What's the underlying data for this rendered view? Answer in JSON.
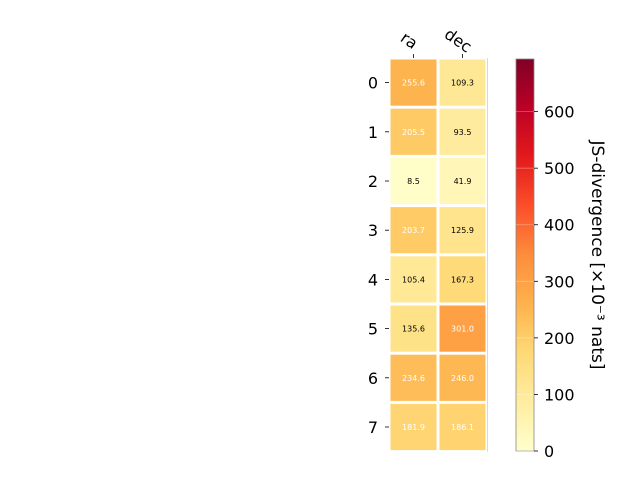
{
  "chart_data": {
    "type": "heatmap",
    "columns": [
      "ra",
      "dec"
    ],
    "rows": [
      "0",
      "1",
      "2",
      "3",
      "4",
      "5",
      "6",
      "7"
    ],
    "values": [
      [
        255.6,
        109.3
      ],
      [
        205.5,
        93.5
      ],
      [
        8.5,
        41.9
      ],
      [
        203.7,
        125.9
      ],
      [
        105.4,
        167.3
      ],
      [
        135.6,
        301.0
      ],
      [
        234.6,
        246.0
      ],
      [
        181.9,
        186.1
      ]
    ],
    "value_labels": [
      [
        "255.6",
        "109.3"
      ],
      [
        "205.5",
        "93.5"
      ],
      [
        "8.5",
        "41.9"
      ],
      [
        "203.7",
        "125.9"
      ],
      [
        "105.4",
        "167.3"
      ],
      [
        "135.6",
        "301.0"
      ],
      [
        "234.6",
        "246.0"
      ],
      [
        "181.9",
        "186.1"
      ]
    ],
    "colorbar": {
      "label": "JS-divergence [×10⁻³ nats]",
      "range": [
        0,
        693
      ],
      "ticks": [
        0,
        100,
        200,
        300,
        400,
        500,
        600
      ],
      "tick_labels": [
        "0",
        "100",
        "200",
        "300",
        "400",
        "500",
        "600"
      ],
      "colormap": "YlOrRd"
    },
    "colors": {
      "stops": [
        "#ffffcc",
        "#ffeda0",
        "#fed976",
        "#feb24c",
        "#fd8d3c",
        "#fc4e2a",
        "#e31a1c",
        "#bd0026",
        "#800026"
      ]
    }
  }
}
